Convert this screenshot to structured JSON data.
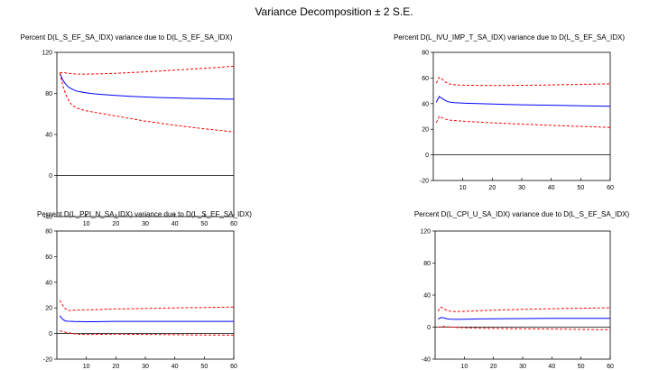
{
  "figure": {
    "title": "Variance Decomposition ± 2 S.E."
  },
  "colors": {
    "response": "#0000ff",
    "band": "#ff0000",
    "zero": "#000000",
    "frame": "#000000"
  },
  "chart_data": [
    {
      "type": "line",
      "title": "Percent D(L_S_EF_SA_IDX) variance due to D(L_S_EF_SA_IDX)",
      "xlim": [
        0,
        60
      ],
      "ylim": [
        -40,
        120
      ],
      "xticks": [
        10,
        20,
        30,
        40,
        50,
        60
      ],
      "yticks": [
        -40,
        0,
        40,
        80,
        120
      ],
      "grid": false,
      "x": [
        1,
        2,
        3,
        4,
        5,
        6,
        7,
        8,
        10,
        12,
        15,
        20,
        25,
        30,
        35,
        40,
        45,
        50,
        55,
        60
      ],
      "series": [
        {
          "values": [
            100,
            93,
            89,
            86,
            84.5,
            83,
            82,
            81.5,
            80.5,
            79.8,
            79,
            78,
            77.2,
            76.5,
            76,
            75.6,
            75.2,
            74.9,
            74.6,
            74.4
          ]
        },
        {
          "values": [
            100,
            88,
            79,
            73,
            69,
            67,
            65.5,
            64.5,
            63,
            62,
            60.5,
            58,
            55.5,
            53,
            51,
            49,
            47.2,
            45.5,
            44,
            42.5
          ]
        },
        {
          "values": [
            100,
            100.5,
            100,
            99.5,
            99.2,
            99,
            98.8,
            98.8,
            98.8,
            98.9,
            99.1,
            99.6,
            100.3,
            101,
            101.8,
            102.7,
            103.6,
            104.5,
            105.4,
            106.5
          ]
        }
      ]
    },
    {
      "type": "line",
      "title": "Percent D(L_IVU_IMP_T_SA_IDX) variance due to D(L_S_EF_SA_IDX)",
      "xlim": [
        0,
        60
      ],
      "ylim": [
        -20,
        80
      ],
      "xticks": [
        10,
        20,
        30,
        40,
        50,
        60
      ],
      "yticks": [
        -20,
        0,
        20,
        40,
        60,
        80
      ],
      "grid": false,
      "x": [
        1,
        2,
        3,
        4,
        5,
        6,
        7,
        8,
        10,
        12,
        15,
        20,
        25,
        30,
        35,
        40,
        45,
        50,
        55,
        60
      ],
      "series": [
        {
          "values": [
            41,
            45.5,
            44,
            42.5,
            41.5,
            41,
            40.8,
            40.6,
            40.4,
            40.2,
            40,
            39.7,
            39.4,
            39.1,
            38.9,
            38.7,
            38.5,
            38.3,
            38.1,
            37.9
          ]
        },
        {
          "values": [
            25,
            30,
            29,
            28,
            27.3,
            27,
            26.8,
            26.6,
            26.3,
            26,
            25.6,
            25,
            24.5,
            24,
            23.5,
            23,
            22.6,
            22.2,
            21.8,
            21.4
          ]
        },
        {
          "values": [
            56,
            60.5,
            59,
            57,
            55.8,
            55,
            54.8,
            54.6,
            54.4,
            54.3,
            54.2,
            54.1,
            54.2,
            54.3,
            54.4,
            54.6,
            54.8,
            55,
            55.2,
            55.4
          ]
        }
      ]
    },
    {
      "type": "line",
      "title": "Percent D(L_PPI_N_SA_IDX) variance due to D(L_S_EF_SA_IDX)",
      "xlim": [
        0,
        60
      ],
      "ylim": [
        -20,
        80
      ],
      "xticks": [
        10,
        20,
        30,
        40,
        50,
        60
      ],
      "yticks": [
        -20,
        0,
        20,
        40,
        60,
        80
      ],
      "grid": false,
      "x": [
        1,
        2,
        3,
        4,
        5,
        6,
        7,
        8,
        10,
        12,
        15,
        20,
        25,
        30,
        35,
        40,
        45,
        50,
        55,
        60
      ],
      "series": [
        {
          "values": [
            14,
            11,
            9.8,
            9.6,
            9.5,
            9.4,
            9.3,
            9.3,
            9.2,
            9.2,
            9.3,
            9.5,
            9.5,
            9.5,
            9.5,
            9.5,
            9.5,
            9.5,
            9.5,
            9.5
          ]
        },
        {
          "values": [
            2,
            1.5,
            1,
            0.5,
            0,
            -0.3,
            -0.5,
            -0.6,
            -0.7,
            -0.7,
            -0.6,
            -0.5,
            -0.6,
            -0.7,
            -0.8,
            -0.9,
            -1,
            -1.1,
            -1.2,
            -1.3
          ]
        },
        {
          "values": [
            26,
            22,
            19,
            18,
            18,
            18.2,
            18.3,
            18.4,
            18.5,
            18.6,
            18.8,
            19.2,
            19.4,
            19.6,
            19.8,
            20,
            20.2,
            20.3,
            20.5,
            20.7
          ]
        }
      ]
    },
    {
      "type": "line",
      "title": "Percent D(L_CPI_U_SA_IDX) variance due to D(L_S_EF_SA_IDX)",
      "xlim": [
        0,
        60
      ],
      "ylim": [
        -40,
        120
      ],
      "xticks": [
        10,
        20,
        30,
        40,
        50,
        60
      ],
      "yticks": [
        -40,
        0,
        40,
        80,
        120
      ],
      "grid": false,
      "x": [
        1,
        2,
        3,
        4,
        5,
        6,
        7,
        8,
        10,
        12,
        15,
        20,
        25,
        30,
        35,
        40,
        45,
        50,
        55,
        60
      ],
      "series": [
        {
          "values": [
            10,
            12,
            11.5,
            10.5,
            10,
            9.8,
            9.7,
            9.7,
            9.8,
            10,
            10.2,
            10.5,
            10.6,
            10.7,
            10.8,
            10.9,
            10.9,
            11,
            11,
            11
          ]
        },
        {
          "values": [
            0,
            0.5,
            0.8,
            0.5,
            0.2,
            0,
            -0.3,
            -0.5,
            -0.8,
            -1,
            -1.3,
            -1.6,
            -1.8,
            -2,
            -2.2,
            -2.4,
            -2.6,
            -2.8,
            -3,
            -3.2
          ]
        },
        {
          "values": [
            20,
            25,
            23,
            21,
            20,
            19.6,
            19.5,
            19.5,
            19.7,
            20,
            20.5,
            21.2,
            21.7,
            22.2,
            22.6,
            23,
            23.3,
            23.6,
            23.9,
            24.2
          ]
        }
      ]
    }
  ]
}
